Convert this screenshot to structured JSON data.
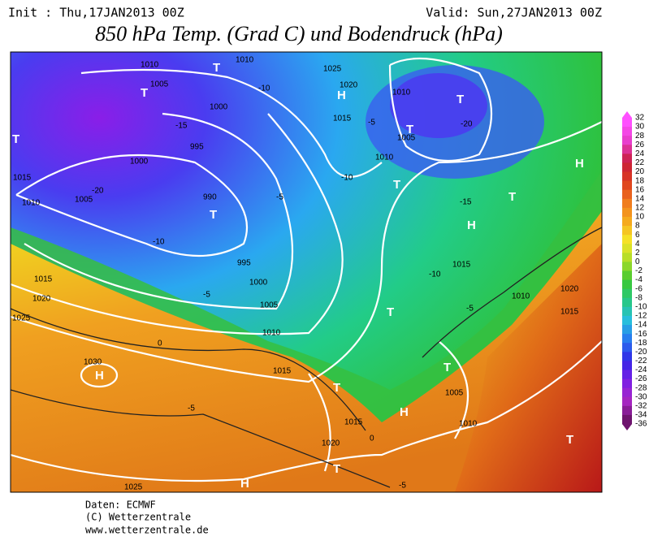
{
  "header": {
    "init": "Init : Thu,17JAN2013 00Z",
    "valid": "Valid: Sun,27JAN2013 00Z",
    "title": "850 hPa Temp. (Grad C) und Bodendruck (hPa)"
  },
  "colorbar": {
    "labels": [
      "32",
      "30",
      "28",
      "26",
      "24",
      "22",
      "20",
      "18",
      "16",
      "14",
      "12",
      "10",
      "8",
      "6",
      "4",
      "2",
      "0",
      "-2",
      "-4",
      "-6",
      "-8",
      "-10",
      "-12",
      "-14",
      "-16",
      "-18",
      "-20",
      "-22",
      "-24",
      "-26",
      "-28",
      "-30",
      "-32",
      "-34",
      "-36"
    ]
  },
  "isobar_labels": [
    "1010",
    "1005",
    "1010",
    "1025",
    "1020",
    "1010",
    "1000",
    "995",
    "1000",
    "1005",
    "990",
    "995",
    "1000",
    "1005",
    "1010",
    "1015",
    "1020",
    "1015",
    "1010",
    "1015",
    "1030",
    "1025",
    "1015",
    "1020",
    "1010",
    "1005",
    "1010",
    "1015",
    "1020",
    "1015",
    "1010",
    "1005",
    "1015",
    "1025"
  ],
  "temp_labels": [
    "-20",
    "-15",
    "-10",
    "-5",
    "-5",
    "-10",
    "-5",
    "-15",
    "-10",
    "-20",
    "-10",
    "-5",
    "0",
    "-5",
    "0",
    "-5"
  ],
  "centers": [
    "T",
    "T",
    "T",
    "T",
    "H",
    "T",
    "T",
    "H",
    "T",
    "H",
    "T",
    "T",
    "H",
    "T",
    "H",
    "T",
    "T",
    "H",
    "T"
  ],
  "footer": {
    "source": "Daten: ECMWF",
    "copyright": "(C) Wetterzentrale",
    "url": "www.wetterzentrale.de"
  }
}
